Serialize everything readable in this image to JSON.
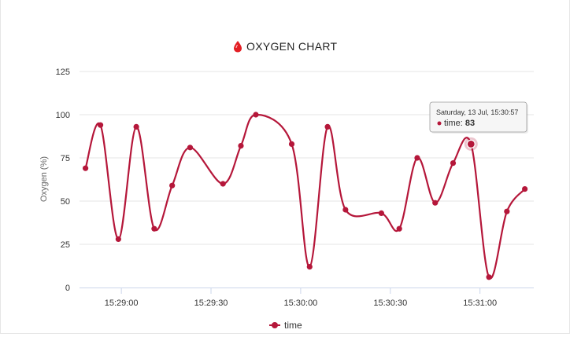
{
  "chart_data": {
    "type": "line",
    "title": "OXYGEN CHART",
    "title_icon": "blood-drop-icon",
    "ylabel": "Oxygen (%)",
    "xlabel": "",
    "ylim": [
      0,
      125
    ],
    "y_ticks": [
      0,
      25,
      50,
      75,
      100,
      125
    ],
    "x_range": [
      "15:28:46",
      "15:31:18"
    ],
    "x_ticks": [
      "15:29:00",
      "15:29:30",
      "15:30:00",
      "15:30:30",
      "15:31:00"
    ],
    "grid": true,
    "legend_position": "bottom-center",
    "series": [
      {
        "name": "time",
        "color": "#b5173a",
        "points": [
          {
            "t": "15:28:48",
            "y": 69
          },
          {
            "t": "15:28:53",
            "y": 94
          },
          {
            "t": "15:28:59",
            "y": 28
          },
          {
            "t": "15:29:05",
            "y": 93
          },
          {
            "t": "15:29:11",
            "y": 34
          },
          {
            "t": "15:29:17",
            "y": 59
          },
          {
            "t": "15:29:23",
            "y": 81
          },
          {
            "t": "15:29:34",
            "y": 60
          },
          {
            "t": "15:29:40",
            "y": 82
          },
          {
            "t": "15:29:45",
            "y": 100
          },
          {
            "t": "15:29:57",
            "y": 83
          },
          {
            "t": "15:30:03",
            "y": 12
          },
          {
            "t": "15:30:09",
            "y": 93
          },
          {
            "t": "15:30:15",
            "y": 45
          },
          {
            "t": "15:30:27",
            "y": 43
          },
          {
            "t": "15:30:33",
            "y": 34
          },
          {
            "t": "15:30:39",
            "y": 75
          },
          {
            "t": "15:30:45",
            "y": 49
          },
          {
            "t": "15:30:51",
            "y": 72
          },
          {
            "t": "15:30:57",
            "y": 83
          },
          {
            "t": "15:31:03",
            "y": 6
          },
          {
            "t": "15:31:09",
            "y": 44
          },
          {
            "t": "15:31:15",
            "y": 57
          }
        ]
      }
    ],
    "tooltip": {
      "date": "Saturday, 13 Jul, 15:30:57",
      "series": "time",
      "value": "83",
      "point_index": 19
    }
  }
}
